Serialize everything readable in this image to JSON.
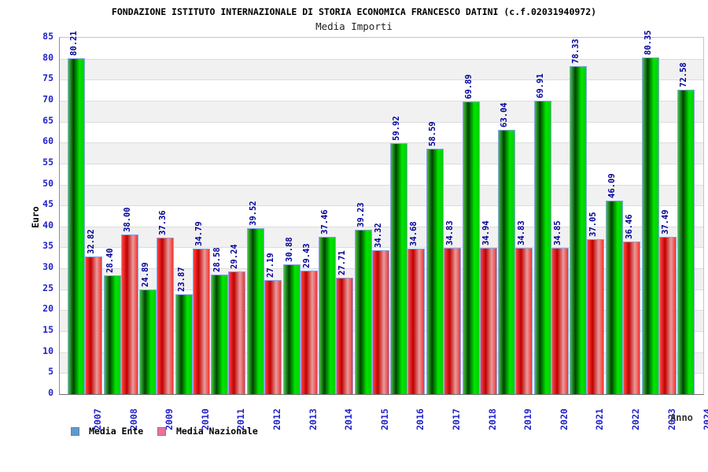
{
  "header": {
    "title": "FONDAZIONE ISTITUTO INTERNAZIONALE DI STORIA ECONOMICA FRANCESCO DATINI (c.f.02031940972)",
    "subtitle": "Media Importi"
  },
  "chart_data": {
    "type": "bar",
    "categories": [
      "2007",
      "2008",
      "2009",
      "2010",
      "2011",
      "2012",
      "2013",
      "2014",
      "2015",
      "2016",
      "2017",
      "2018",
      "2019",
      "2020",
      "2021",
      "2022",
      "2023",
      "2024"
    ],
    "series": [
      {
        "name": "Media Ente",
        "values": [
          80.21,
          28.4,
          24.89,
          23.87,
          28.58,
          39.52,
          30.88,
          37.46,
          39.23,
          59.92,
          58.59,
          69.89,
          63.04,
          69.91,
          78.33,
          46.09,
          80.35,
          72.58
        ],
        "labels": [
          "80.21",
          "28.40",
          "24.89",
          "23.87",
          "28.58",
          "39.52",
          "30.88",
          "37.46",
          "39.23",
          "59.92",
          "58.59",
          "69.89",
          "63.04",
          "69.91",
          "78.33",
          "46.09",
          "80.35",
          "72.58"
        ],
        "legend_color": "#5b9bd5",
        "bar_gradient": [
          "#44c044",
          "#004400",
          "#00e600",
          "#00cf00"
        ]
      },
      {
        "name": "Media Nazionale",
        "values": [
          32.82,
          38.0,
          37.36,
          34.79,
          29.24,
          27.19,
          29.43,
          27.71,
          34.32,
          34.68,
          34.83,
          34.94,
          34.83,
          34.85,
          37.05,
          36.46,
          37.49,
          null
        ],
        "labels": [
          "32.82",
          "38.00",
          "37.36",
          "34.79",
          "29.24",
          "27.19",
          "29.43",
          "27.71",
          "34.32",
          "34.68",
          "34.83",
          "34.94",
          "34.83",
          "34.85",
          "37.05",
          "36.46",
          "37.49",
          ""
        ],
        "legend_color": "#e8729c",
        "bar_gradient": [
          "#ff4444",
          "#c00000",
          "#e89c9c",
          "#f23333"
        ]
      }
    ],
    "ylabel": "Euro",
    "xlabel": "Anno",
    "ylim": [
      0,
      85
    ],
    "ytick_step": 5,
    "yticks": [
      0,
      5,
      10,
      15,
      20,
      25,
      30,
      35,
      40,
      45,
      50,
      55,
      60,
      65,
      70,
      75,
      80,
      85
    ],
    "grid": "horizontal-bands",
    "band_colors": [
      "#ffffff",
      "#f1f1f1"
    ],
    "legend_position": "bottom-left",
    "axis_text_color": "#2222cc",
    "value_label_color": "#000099"
  }
}
